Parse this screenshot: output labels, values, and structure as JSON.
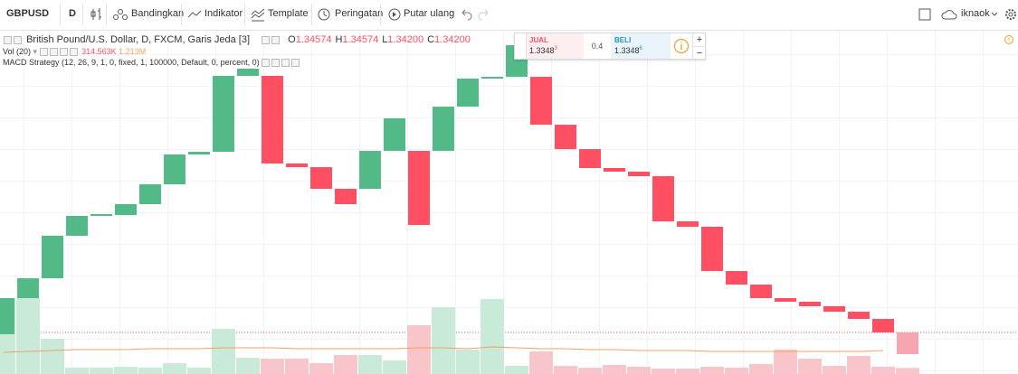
{
  "toolbar": {
    "symbol": "GBPUSD",
    "interval": "D",
    "compare": "Bandingkan",
    "indicators": "Indikator",
    "template": "Template",
    "alert": "Peringatan",
    "replay": "Putar ulang",
    "user": "iknaok"
  },
  "legend": {
    "title": "British Pound/U.S. Dollar, D, FXCM, Garis Jeda [3]",
    "ohlc": [
      {
        "key": "O",
        "value": "1.34574"
      },
      {
        "key": "H",
        "value": "1.34574"
      },
      {
        "key": "L",
        "value": "1.34200"
      },
      {
        "key": "C",
        "value": "1.34200"
      }
    ],
    "volume_name": "Vol (20)",
    "volume_value": "314.563K",
    "volume_ma": "1.213M",
    "strategy": "MACD Strategy (12, 26, 9, 1, 0, fixed, 1, 100000, Default, 0, percent, 0)"
  },
  "quote": {
    "sell_label": "JUAL",
    "sell_price": "1.3348",
    "sell_pip": "3",
    "spread": "0.4",
    "buy_label": "BELI",
    "buy_price": "1.3348",
    "buy_pip": "6",
    "plus": "+",
    "minus": "−"
  },
  "chart_data": {
    "type": "candlestick",
    "ylim": [
      1.33857,
      1.39754
    ],
    "colors": {
      "up": "#53b987",
      "down": "#ff4f62",
      "pending": "#f5a6ae",
      "volume_up": "#c9e9d9",
      "volume_down": "#f8c5ca",
      "volume_ma": "#f5a25d"
    },
    "candles": [
      {
        "open": 1.34543,
        "close": 1.35167
      },
      {
        "open": 1.35167,
        "close": 1.3551
      },
      {
        "open": 1.3551,
        "close": 1.36244
      },
      {
        "open": 1.36244,
        "close": 1.36587
      },
      {
        "open": 1.36587,
        "close": 1.36618
      },
      {
        "open": 1.36602,
        "close": 1.3679
      },
      {
        "open": 1.3679,
        "close": 1.37133
      },
      {
        "open": 1.37133,
        "close": 1.37648
      },
      {
        "open": 1.37648,
        "close": 1.37694
      },
      {
        "open": 1.37694,
        "close": 1.39005
      },
      {
        "open": 1.39005,
        "close": 1.3913
      },
      {
        "open": 1.39005,
        "close": 1.37492
      },
      {
        "open": 1.37492,
        "close": 1.37429
      },
      {
        "open": 1.37429,
        "close": 1.37055
      },
      {
        "open": 1.37055,
        "close": 1.3679
      },
      {
        "open": 1.37055,
        "close": 1.3771
      },
      {
        "open": 1.3771,
        "close": 1.38272
      },
      {
        "open": 1.3771,
        "close": 1.36431
      },
      {
        "open": 1.3771,
        "close": 1.38474
      },
      {
        "open": 1.38474,
        "close": 1.38958
      },
      {
        "open": 1.38958,
        "close": 1.38989
      },
      {
        "open": 1.38989,
        "close": 1.39535
      },
      {
        "open": 1.38989,
        "close": 1.38162
      },
      {
        "open": 1.38162,
        "close": 1.37741
      },
      {
        "open": 1.37741,
        "close": 1.37414
      },
      {
        "open": 1.37414,
        "close": 1.37351
      },
      {
        "open": 1.37351,
        "close": 1.37273
      },
      {
        "open": 1.37273,
        "close": 1.36493
      },
      {
        "open": 1.36493,
        "close": 1.364
      },
      {
        "open": 1.364,
        "close": 1.35635
      },
      {
        "open": 1.35635,
        "close": 1.35401
      },
      {
        "open": 1.35401,
        "close": 1.35167
      },
      {
        "open": 1.35167,
        "close": 1.35105
      },
      {
        "open": 1.35105,
        "close": 1.35027
      },
      {
        "open": 1.35027,
        "close": 1.34933
      },
      {
        "open": 1.34933,
        "close": 1.34808
      },
      {
        "open": 1.34808,
        "close": 1.34574
      },
      {
        "open": 1.34574,
        "close": 1.342
      }
    ],
    "volume_lim": [
      0,
      17600000
    ],
    "volume": [
      3911000,
      3911000,
      1816000,
      326000,
      326000,
      372000,
      326000,
      559000,
      326000,
      2328000,
      838000,
      792000,
      792000,
      559000,
      978000,
      978000,
      698000,
      2514000,
      3445000,
      1257000,
      3864000,
      419000,
      1164000,
      419000,
      326000,
      466000,
      372000,
      279000,
      279000,
      372000,
      326000,
      512000,
      1257000,
      792000,
      419000,
      931000,
      372000,
      314563
    ],
    "volume_ma": [
      1117000,
      1164000,
      1211000,
      1257000,
      1257000,
      1257000,
      1304000,
      1304000,
      1304000,
      1350000,
      1350000,
      1350000,
      1304000,
      1304000,
      1304000,
      1304000,
      1304000,
      1350000,
      1350000,
      1304000,
      1397000,
      1350000,
      1304000,
      1304000,
      1257000,
      1257000,
      1211000,
      1211000,
      1211000,
      1164000,
      1164000,
      1164000,
      1164000,
      1164000,
      1164000,
      1164000,
      1213000,
      null
    ]
  }
}
